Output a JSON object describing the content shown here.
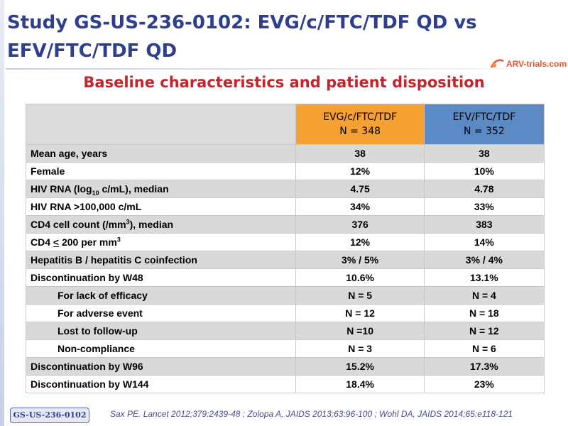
{
  "slide": {
    "title_line1": "Study GS-US-236-0102: EVG/c/FTC/TDF QD vs",
    "title_line2": "EFV/FTC/TDF QD",
    "subtitle": "Baseline characteristics and patient disposition",
    "logo_text": "ARV-trials.com",
    "study_tag": "GS-US-236-0102",
    "reference": "Sax PE. Lancet 2012;379:2439-48 ; Zolopa A, JAIDS 2013;63:96-100 ; Wohl DA, JAIDS 2014;65:e118-121"
  },
  "colors": {
    "title": "#2f3f8f",
    "subtitle": "#c0262c",
    "evg_header": "#f5a033",
    "efv_header": "#5b8ac4",
    "row_shade": "#d9d9d9"
  },
  "table": {
    "headers": {
      "evg_name": "EVG/c/FTC/TDF",
      "evg_n": "N = 348",
      "efv_name": "EFV/FTC/TDF",
      "efv_n": "N = 352"
    },
    "rows": [
      {
        "label": "Mean age, years",
        "evg": "38",
        "efv": "38"
      },
      {
        "label": "Female",
        "evg": "12%",
        "efv": "10%"
      },
      {
        "label_pre": "HIV RNA (log",
        "label_sub": "10",
        "label_post": " c/mL), median",
        "evg": "4.75",
        "efv": "4.78"
      },
      {
        "label": "HIV RNA >100,000 c/mL",
        "evg": "34%",
        "efv": "33%"
      },
      {
        "label_pre": "CD4 cell count (/mm",
        "label_sup": "3",
        "label_post": "), median",
        "evg": "376",
        "efv": "383"
      },
      {
        "label_pre": "CD4 ",
        "label_u": "<",
        "label_mid": " 200 per mm",
        "label_sup": "3",
        "evg": "12%",
        "efv": "14%"
      },
      {
        "label": "Hepatitis B / hepatitis C coinfection",
        "evg": "3% / 5%",
        "efv": "3% / 4%"
      },
      {
        "label": "Discontinuation by W48",
        "evg": "10.6%",
        "efv": "13.1%"
      },
      {
        "label": "For lack of efficacy",
        "evg": "N = 5",
        "efv": "N = 4"
      },
      {
        "label": "For adverse event",
        "evg": "N = 12",
        "efv": "N = 18"
      },
      {
        "label": "Lost to follow-up",
        "evg": "N =10",
        "efv": "N = 12"
      },
      {
        "label": "Non-compliance",
        "evg": "N = 3",
        "efv": "N = 6"
      },
      {
        "label": "Discontinuation by W96",
        "evg": "15.2%",
        "efv": "17.3%"
      },
      {
        "label": "Discontinuation by W144",
        "evg": "18.4%",
        "efv": "23%"
      }
    ]
  }
}
